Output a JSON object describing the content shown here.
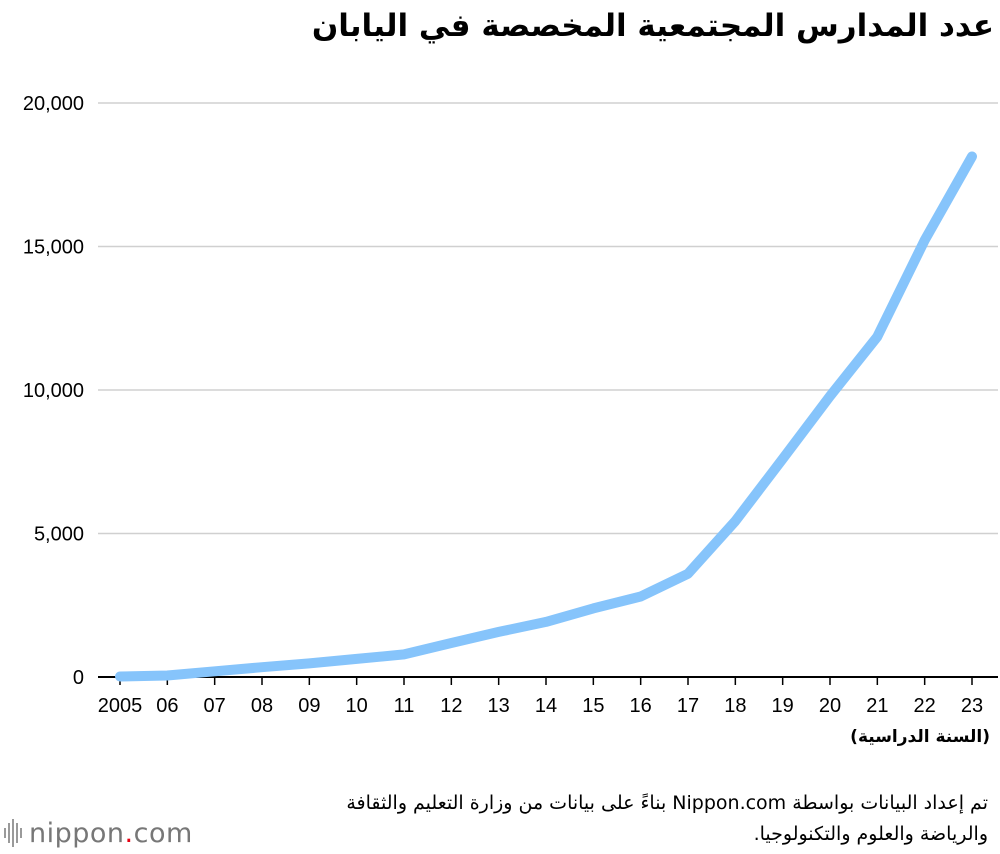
{
  "title": "عدد المدارس المجتمعية المخصصة في اليابان",
  "source_note": "تم إعداد البيانات بواسطة Nippon.com بناءً على بيانات من وزارة التعليم والثقافة والرياضة والعلوم والتكنولوجيا.",
  "logo": {
    "text": "nippon",
    "dot": ".",
    "suffix": "com"
  },
  "colors": {
    "line": "#86c4fb",
    "grid": "#d0d0d0",
    "axis": "#000000"
  },
  "chart_data": {
    "type": "line",
    "title": "عدد المدارس المجتمعية المخصصة في اليابان",
    "xlabel": "(السنة الدراسية)",
    "ylabel": "",
    "categories": [
      "2005",
      "06",
      "07",
      "08",
      "09",
      "10",
      "11",
      "12",
      "13",
      "14",
      "15",
      "16",
      "17",
      "18",
      "19",
      "20",
      "21",
      "22",
      "23"
    ],
    "yticks": [
      "0",
      "5,000",
      "10,000",
      "15,000",
      "20,000"
    ],
    "ytick_values": [
      0,
      5000,
      10000,
      15000,
      20000
    ],
    "ylim": [
      0,
      20000
    ],
    "grid": true,
    "series": [
      {
        "values": [
          17,
          53,
          197,
          341,
          475,
          629,
          789,
          1183,
          1570,
          1919,
          2389,
          2806,
          3600,
          5432,
          7601,
          9788,
          11856,
          15221,
          18135
        ]
      }
    ]
  }
}
